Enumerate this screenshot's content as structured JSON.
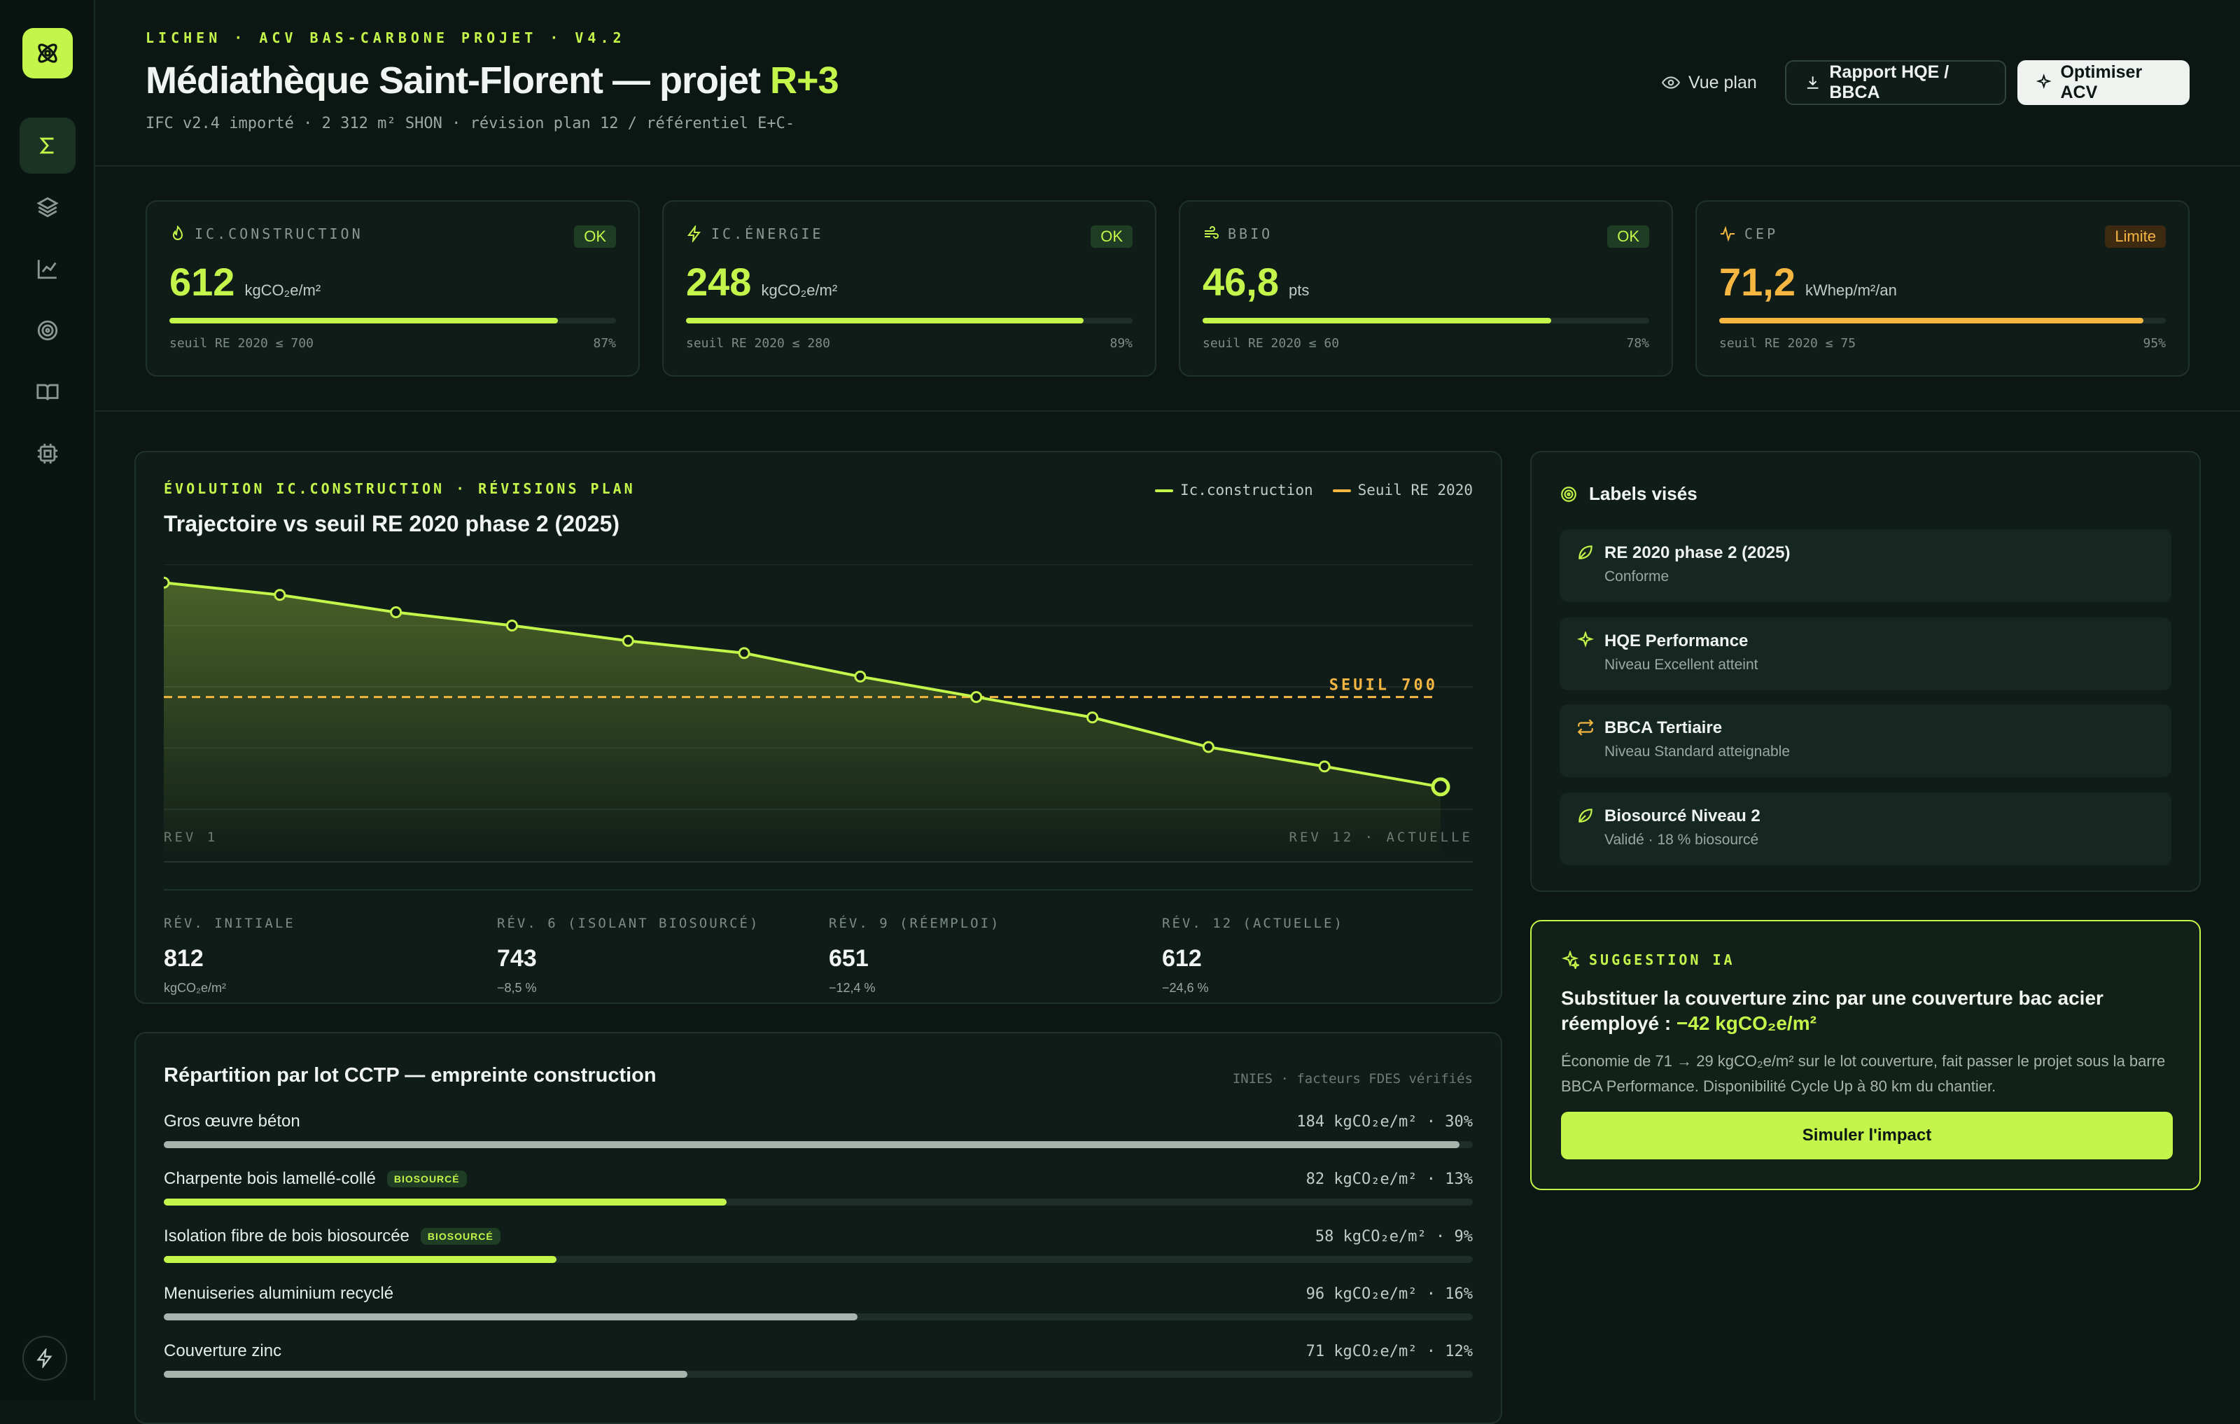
{
  "header": {
    "eyebrow": "LICHEN · ACV BAS-CARBONE PROJET · V4.2",
    "title_main": "Médiathèque Saint-Florent — projet ",
    "title_accent": "R+3",
    "subline": "IFC v2.4 importé · 2 312 m² SHON · révision plan 12 / référentiel E+C-",
    "btn_view": "Vue plan",
    "btn_report": "Rapport HQE / BBCA",
    "btn_optimize": "Optimiser ACV"
  },
  "sidebar": {
    "items": [
      "sigma-icon",
      "layers-icon",
      "chart-line-icon",
      "target-icon",
      "book-icon",
      "cpu-icon"
    ],
    "bottom": "bolt-icon"
  },
  "kpis": [
    {
      "label": "IC.CONSTRUCTION",
      "icon": "flame-icon",
      "badge": "OK",
      "value": "612",
      "unit": "kgCO₂e/m²",
      "threshold": "seuil RE 2020 ≤ 700",
      "pct": "87%",
      "progress": 0.87,
      "color": "#c4f54a"
    },
    {
      "label": "IC.ÉNERGIE",
      "icon": "bolt-icon",
      "badge": "OK",
      "value": "248",
      "unit": "kgCO₂e/m²",
      "threshold": "seuil RE 2020 ≤ 280",
      "pct": "89%",
      "progress": 0.89,
      "color": "#c4f54a"
    },
    {
      "label": "BBIO",
      "icon": "wind-icon",
      "badge": "OK",
      "value": "46,8",
      "unit": "pts",
      "threshold": "seuil RE 2020 ≤ 60",
      "pct": "78%",
      "progress": 0.78,
      "color": "#c4f54a"
    },
    {
      "label": "CEP",
      "icon": "pulse-icon",
      "badge": "Limite",
      "value": "71,2",
      "unit": "kWhep/m²/an",
      "threshold": "seuil RE 2020 ≤ 75",
      "pct": "95%",
      "progress": 0.95,
      "color": "#f5b642"
    }
  ],
  "chart": {
    "eyebrow": "ÉVOLUTION IC.CONSTRUCTION · RÉVISIONS PLAN",
    "title": "Trajectoire vs seuil RE 2020 phase 2 (2025)",
    "legend_series": "Ic.construction",
    "legend_threshold": "Seuil RE 2020",
    "threshold_label": "SEUIL 700",
    "x_start_label": "REV 1",
    "x_end_label": "REV 12 · ACTUELLE"
  },
  "chart_data": {
    "type": "area",
    "x": [
      1,
      2,
      3,
      4,
      5,
      6,
      7,
      8,
      9,
      10,
      11,
      12
    ],
    "series": [
      {
        "name": "Ic.construction",
        "values": [
          812,
          800,
          783,
          770,
          755,
          743,
          720,
          700,
          680,
          651,
          632,
          612
        ],
        "color": "#c4f54a"
      },
      {
        "name": "Seuil RE 2020",
        "values": [
          700,
          700,
          700,
          700,
          700,
          700,
          700,
          700,
          700,
          700,
          700,
          700
        ],
        "color": "#f5b642"
      }
    ],
    "ylim": [
      590,
      830
    ],
    "grid": true
  },
  "revisions": [
    {
      "label": "RÉV. INITIALE",
      "value": "812",
      "sub": "kgCO₂e/m²",
      "accent": false
    },
    {
      "label": "RÉV. 6 (ISOLANT BIOSOURCÉ)",
      "value": "743",
      "sub": "−8,5 %",
      "accent": false
    },
    {
      "label": "RÉV. 9 (RÉEMPLOI)",
      "value": "651",
      "sub": "−12,4 %",
      "accent": false
    },
    {
      "label": "RÉV. 12 (ACTUELLE)",
      "value": "612",
      "sub": "−24,6 %",
      "accent": true
    }
  ],
  "lots": {
    "title": "Répartition par lot CCTP — empreinte construction",
    "note": "INIES · facteurs FDES vérifiés",
    "items": [
      {
        "name": "Gros œuvre béton",
        "badge": "",
        "value": "184 kgCO₂e/m² · 30%",
        "share": 0.99,
        "color": "#a8b5ae"
      },
      {
        "name": "Charpente bois lamellé-collé",
        "badge": "BIOSOURCÉ",
        "value": "82 kgCO₂e/m² · 13%",
        "share": 0.43,
        "color": "#c4f54a"
      },
      {
        "name": "Isolation fibre de bois biosourcée",
        "badge": "BIOSOURCÉ",
        "value": "58 kgCO₂e/m² · 9%",
        "share": 0.3,
        "color": "#c4f54a"
      },
      {
        "name": "Menuiseries aluminium recyclé",
        "badge": "",
        "value": "96 kgCO₂e/m² · 16%",
        "share": 0.53,
        "color": "#a8b5ae"
      },
      {
        "name": "Couverture zinc",
        "badge": "",
        "value": "71 kgCO₂e/m² · 12%",
        "share": 0.4,
        "color": "#a8b5ae"
      }
    ]
  },
  "labels": {
    "title": "Labels visés",
    "items": [
      {
        "name": "RE 2020 phase 2 (2025)",
        "sub": "Conforme",
        "icon": "leaf-icon",
        "color": "#c4f54a"
      },
      {
        "name": "HQE Performance",
        "sub": "Niveau Excellent atteint",
        "icon": "sparkle-icon",
        "color": "#c4f54a"
      },
      {
        "name": "BBCA Tertiaire",
        "sub": "Niveau Standard atteignable",
        "icon": "repeat-icon",
        "color": "#f5b642"
      },
      {
        "name": "Biosourcé Niveau 2",
        "sub": "Validé · 18 % biosourcé",
        "icon": "leaf-icon",
        "color": "#c4f54a"
      }
    ]
  },
  "suggestion": {
    "eyebrow": "SUGGESTION IA",
    "title": "Substituer la couverture zinc par une couverture bac acier réemployé : ",
    "title_accent": "−42 kgCO₂e/m²",
    "body": "Économie de 71 → 29 kgCO₂e/m² sur le lot couverture, fait passer le projet sous la barre BBCA Performance. Disponibilité Cycle Up à 80 km du chantier.",
    "button": "Simuler l'impact"
  }
}
